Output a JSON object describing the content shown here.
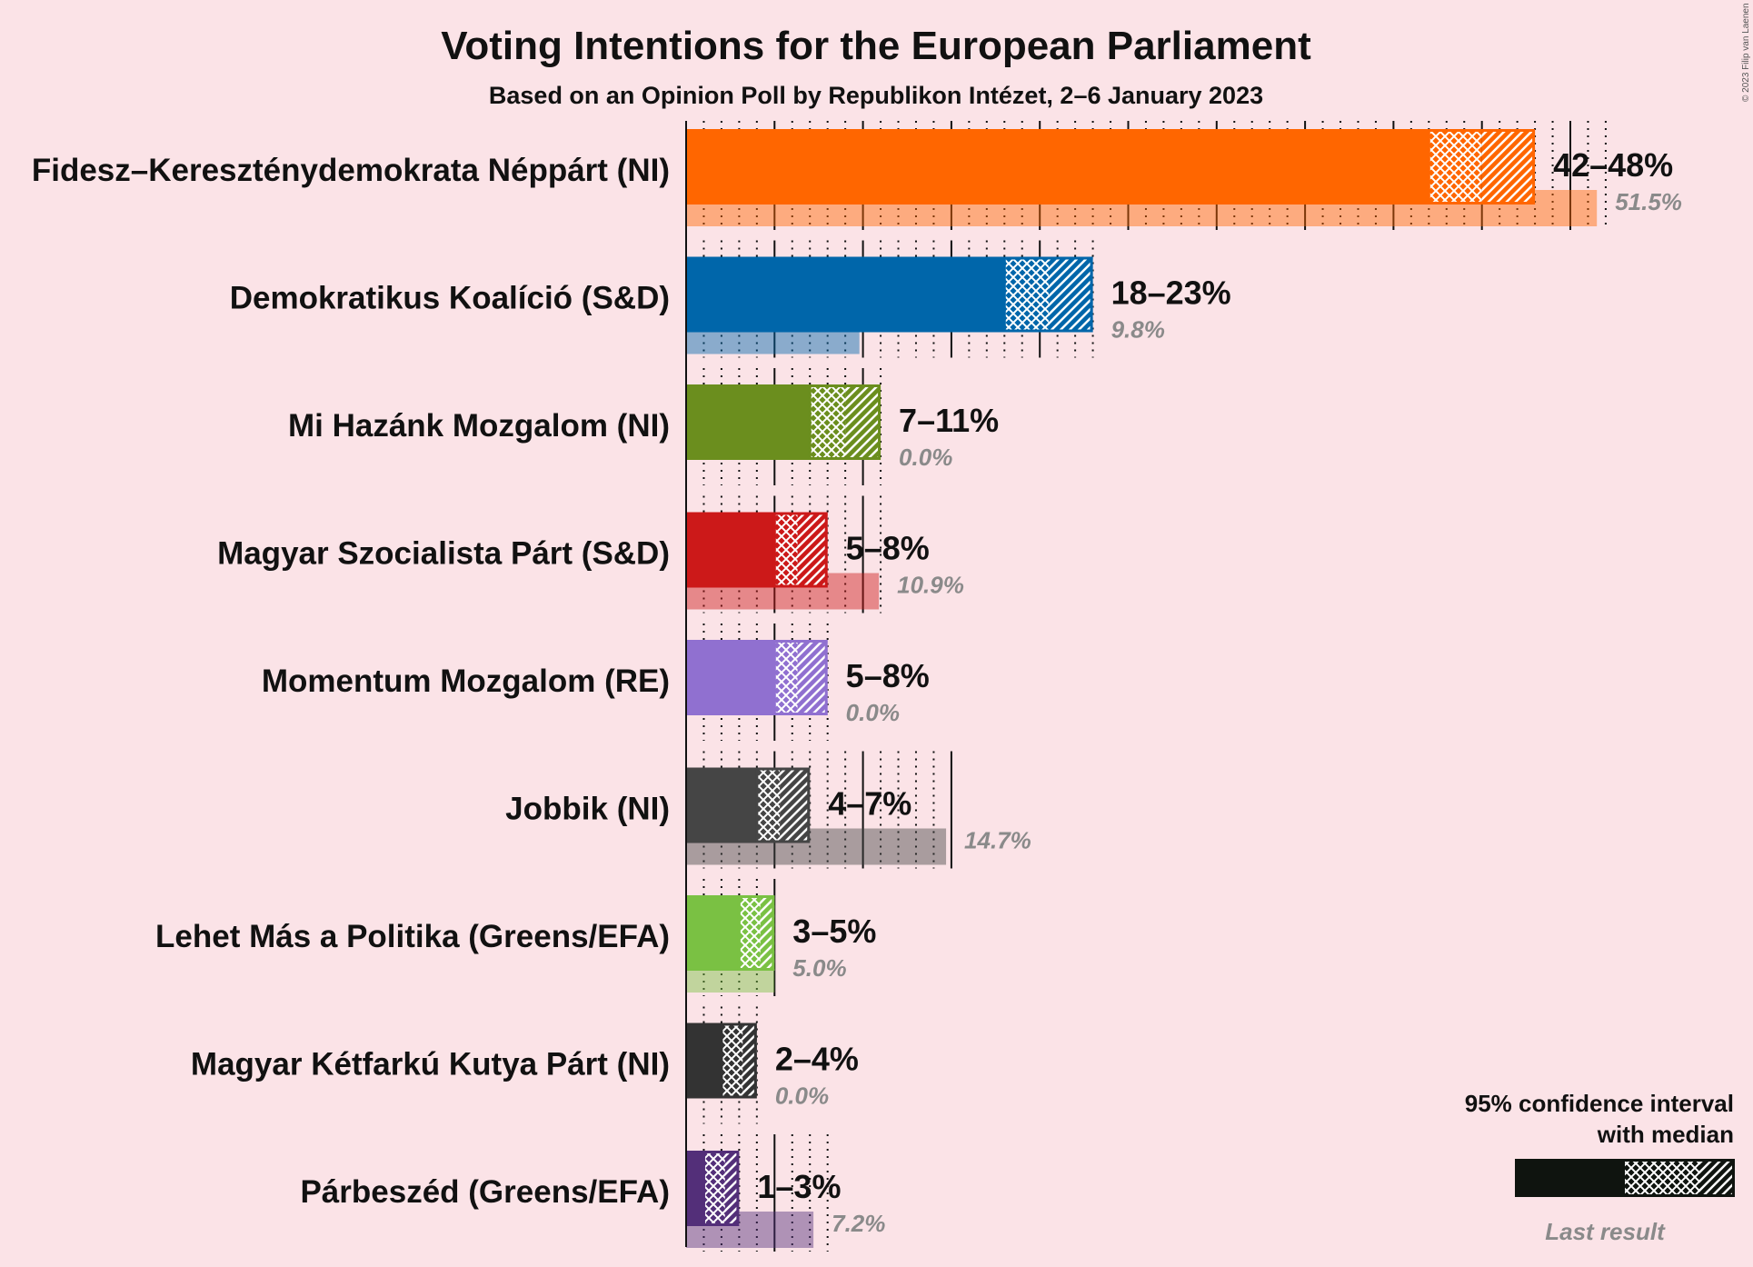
{
  "title": "Voting Intentions for the European Parliament",
  "subtitle": "Based on an Opinion Poll by Republikon Intézet, 2–6 January 2023",
  "copyright": "© 2023 Filip van Laenen",
  "legend": {
    "title_line1": "95% confidence interval",
    "title_line2": "with median",
    "last_result": "Last result",
    "color": "#0f140f"
  },
  "chart_data": {
    "type": "bar",
    "orientation": "horizontal",
    "unit": "%",
    "xlim": [
      0,
      51.5
    ],
    "grid": true,
    "categories": [
      "Fidesz–Kereszténydemokrata Néppárt (NI)",
      "Demokratikus Koalíció (S&D)",
      "Mi Hazánk Mozgalom (NI)",
      "Magyar Szocialista Párt (S&D)",
      "Momentum Mozgalom (RE)",
      "Jobbik (NI)",
      "Lehet Más a Politika (Greens/EFA)",
      "Magyar Kétfarkú Kutya Párt (NI)",
      "Párbeszéd (Greens/EFA)"
    ],
    "series": [
      {
        "name": "95% confidence interval with median",
        "ci_low": [
          42,
          18,
          7,
          5,
          5,
          4,
          3,
          2,
          1
        ],
        "median": [
          45,
          20.5,
          9,
          6.3,
          6.3,
          5.3,
          4.2,
          3.2,
          2.2
        ],
        "ci_high": [
          48,
          23,
          11,
          8,
          8,
          7,
          5,
          4,
          3
        ]
      },
      {
        "name": "Last result",
        "values": [
          51.5,
          9.8,
          0.0,
          10.9,
          0.0,
          14.7,
          5.0,
          0.0,
          7.2
        ]
      }
    ],
    "range_labels": [
      "42–48%",
      "18–23%",
      "7–11%",
      "5–8%",
      "5–8%",
      "4–7%",
      "3–5%",
      "2–4%",
      "1–3%"
    ],
    "last_labels": [
      "51.5%",
      "9.8%",
      "0.0%",
      "10.9%",
      "0.0%",
      "14.7%",
      "5.0%",
      "0.0%",
      "7.2%"
    ],
    "colors": [
      "#ff6600",
      "#0066aa",
      "#6b8e1e",
      "#cc1919",
      "#9070d0",
      "#454545",
      "#7ac143",
      "#333333",
      "#532f79"
    ]
  }
}
